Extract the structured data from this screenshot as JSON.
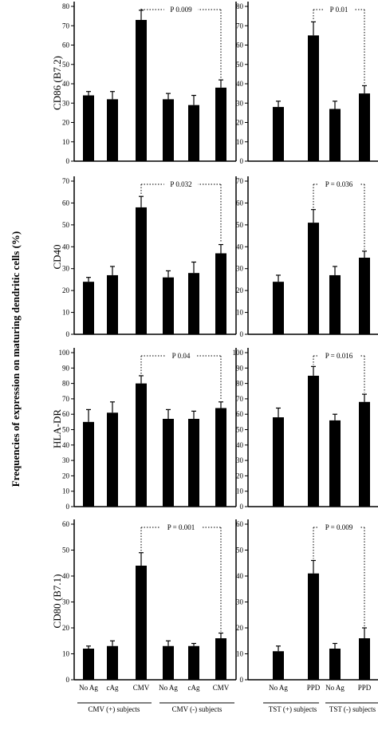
{
  "figure": {
    "ylabel": "Frequencies of expression on maturing dendritic cells (%)"
  },
  "chart_data": [
    {
      "type": "bar",
      "ylabel": "CD86 (B7.2)",
      "ylim": [
        0,
        80
      ],
      "yticks": [
        "0",
        "10",
        "20",
        "30",
        "40",
        "50",
        "60",
        "70",
        "80"
      ],
      "categories": [
        "No Ag",
        "cAg",
        "CMV",
        "No Ag",
        "cAg",
        "CMV"
      ],
      "values": [
        34,
        32,
        73,
        32,
        29,
        38
      ],
      "errors": [
        2,
        4,
        5,
        3,
        5,
        4
      ],
      "annotation": "P 0.009",
      "bracket": [
        2,
        5
      ]
    },
    {
      "type": "bar",
      "ylabel": "",
      "ylim": [
        0,
        80
      ],
      "yticks": [
        "0",
        "10",
        "20",
        "30",
        "40",
        "50",
        "60",
        "70",
        "80"
      ],
      "categories": [
        "No Ag",
        "PPD",
        "No Ag",
        "PPD"
      ],
      "values": [
        28,
        65,
        27,
        35
      ],
      "errors": [
        3,
        7,
        4,
        4
      ],
      "annotation": "P 0.01",
      "bracket": [
        1,
        3
      ]
    },
    {
      "type": "bar",
      "ylabel": "CD40",
      "ylim": [
        0,
        70
      ],
      "yticks": [
        "0",
        "10",
        "20",
        "30",
        "40",
        "50",
        "60",
        "70"
      ],
      "categories": [
        "No Ag",
        "cAg",
        "CMV",
        "No Ag",
        "cAg",
        "CMV"
      ],
      "values": [
        24,
        27,
        58,
        26,
        28,
        37
      ],
      "errors": [
        2,
        4,
        5,
        3,
        5,
        4
      ],
      "annotation": "P 0.032",
      "bracket": [
        2,
        5
      ]
    },
    {
      "type": "bar",
      "ylabel": "",
      "ylim": [
        0,
        70
      ],
      "yticks": [
        "0",
        "10",
        "20",
        "30",
        "40",
        "50",
        "60",
        "70"
      ],
      "categories": [
        "No Ag",
        "PPD",
        "No Ag",
        "PPD"
      ],
      "values": [
        24,
        51,
        27,
        35
      ],
      "errors": [
        3,
        6,
        4,
        3
      ],
      "annotation": "P = 0.036",
      "bracket": [
        1,
        3
      ]
    },
    {
      "type": "bar",
      "ylabel": "HLA-DR",
      "ylim": [
        0,
        100
      ],
      "yticks": [
        "0",
        "10",
        "20",
        "30",
        "40",
        "50",
        "60",
        "70",
        "80",
        "90",
        "100"
      ],
      "categories": [
        "No Ag",
        "cAg",
        "CMV",
        "No Ag",
        "cAg",
        "CMV"
      ],
      "values": [
        55,
        61,
        80,
        57,
        57,
        64
      ],
      "errors": [
        8,
        7,
        5,
        6,
        5,
        4
      ],
      "annotation": "P 0.04",
      "bracket": [
        2,
        5
      ]
    },
    {
      "type": "bar",
      "ylabel": "",
      "ylim": [
        0,
        100
      ],
      "yticks": [
        "0",
        "10",
        "20",
        "30",
        "40",
        "50",
        "60",
        "70",
        "80",
        "90",
        "100"
      ],
      "categories": [
        "No Ag",
        "PPD",
        "No Ag",
        "PPD"
      ],
      "values": [
        58,
        85,
        56,
        68
      ],
      "errors": [
        6,
        6,
        4,
        5
      ],
      "annotation": "P = 0.016",
      "bracket": [
        1,
        3
      ]
    },
    {
      "type": "bar",
      "ylabel": "CD80 (B7.1)",
      "ylim": [
        0,
        60
      ],
      "yticks": [
        "0",
        "10",
        "20",
        "30",
        "40",
        "50",
        "60"
      ],
      "categories": [
        "No Ag",
        "cAg",
        "CMV",
        "No Ag",
        "cAg",
        "CMV"
      ],
      "values": [
        12,
        13,
        44,
        13,
        13,
        16
      ],
      "errors": [
        1,
        2,
        5,
        2,
        1,
        2
      ],
      "annotation": "P = 0.001",
      "bracket": [
        2,
        5
      ],
      "groups": [
        "CMV (+) subjects",
        "CMV (-) subjects"
      ]
    },
    {
      "type": "bar",
      "ylabel": "",
      "ylim": [
        0,
        60
      ],
      "yticks": [
        "0",
        "10",
        "20",
        "30",
        "40",
        "50",
        "60"
      ],
      "categories": [
        "No Ag",
        "PPD",
        "No Ag",
        "PPD"
      ],
      "values": [
        11,
        41,
        12,
        16
      ],
      "errors": [
        2,
        5,
        2,
        4
      ],
      "annotation": "P = 0.009",
      "bracket": [
        1,
        3
      ],
      "groups": [
        "TST (+) subjects",
        "TST (-) subjects"
      ]
    }
  ]
}
